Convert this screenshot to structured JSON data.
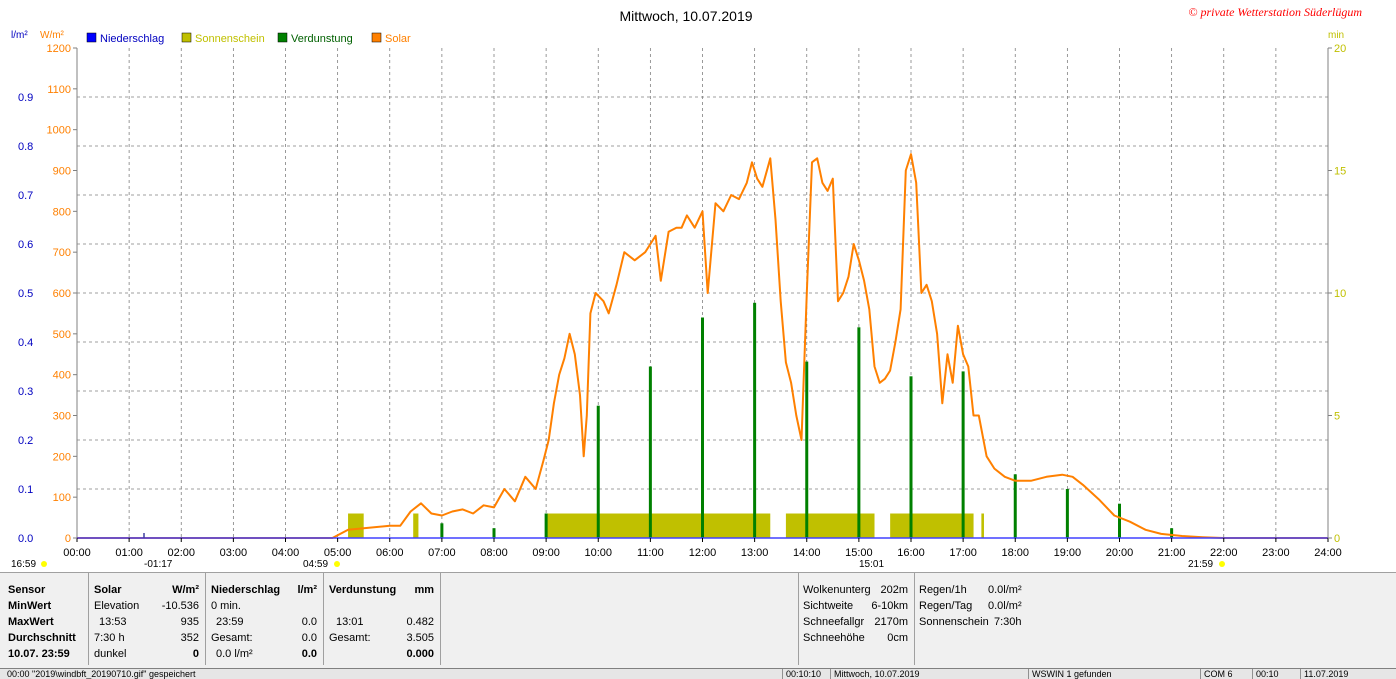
{
  "chart_data": {
    "type": "line",
    "title": "Mittwoch, 10.07.2019",
    "copyright": "© private Wetterstation Süderlügum",
    "left_units": [
      "l/m²",
      "W/m²"
    ],
    "right_unit": "min",
    "legend": [
      {
        "name": "Niederschlag",
        "color": "#0000ff"
      },
      {
        "name": "Sonnenschein",
        "color": "#c0c000"
      },
      {
        "name": "Verdunstung",
        "color": "#008000"
      },
      {
        "name": "Solar",
        "color": "#ff8000"
      }
    ],
    "x_ticks": [
      "00:00",
      "01:00",
      "02:00",
      "03:00",
      "04:00",
      "05:00",
      "06:00",
      "07:00",
      "08:00",
      "09:00",
      "10:00",
      "11:00",
      "12:00",
      "13:00",
      "14:00",
      "15:00",
      "16:00",
      "17:00",
      "18:00",
      "19:00",
      "20:00",
      "21:00",
      "22:00",
      "23:00",
      "24:00"
    ],
    "xlim": [
      0,
      24
    ],
    "y_solar_ticks": [
      "0",
      "100",
      "200",
      "300",
      "400",
      "500",
      "600",
      "700",
      "800",
      "900",
      "1000",
      "1100",
      "1200"
    ],
    "y_solar_lim": [
      0,
      1200
    ],
    "y_rain_ticks": [
      "0.0",
      "0.1",
      "0.2",
      "0.3",
      "0.4",
      "0.5",
      "0.6",
      "0.7",
      "0.8",
      "0.9"
    ],
    "y_rain_lim": [
      0,
      1.0
    ],
    "y_min_ticks": [
      "0",
      "5",
      "10",
      "15",
      "20"
    ],
    "y_min_lim": [
      0,
      20
    ],
    "grid": true,
    "sun_events": {
      "sunrise": "04:59",
      "sunset": "21:59",
      "dawn": "-01:17",
      "noon": "15:01",
      "left_label": "16:59"
    },
    "solar": [
      [
        0,
        0
      ],
      [
        4.9,
        0
      ],
      [
        5.2,
        20
      ],
      [
        5.6,
        25
      ],
      [
        6.0,
        30
      ],
      [
        6.2,
        30
      ],
      [
        6.4,
        65
      ],
      [
        6.6,
        85
      ],
      [
        6.8,
        60
      ],
      [
        7.0,
        55
      ],
      [
        7.2,
        65
      ],
      [
        7.4,
        70
      ],
      [
        7.6,
        60
      ],
      [
        7.8,
        80
      ],
      [
        8.0,
        75
      ],
      [
        8.2,
        120
      ],
      [
        8.4,
        90
      ],
      [
        8.6,
        150
      ],
      [
        8.8,
        120
      ],
      [
        8.95,
        190
      ],
      [
        9.05,
        240
      ],
      [
        9.15,
        330
      ],
      [
        9.25,
        400
      ],
      [
        9.35,
        440
      ],
      [
        9.45,
        500
      ],
      [
        9.55,
        450
      ],
      [
        9.65,
        350
      ],
      [
        9.72,
        200
      ],
      [
        9.78,
        300
      ],
      [
        9.85,
        550
      ],
      [
        9.95,
        600
      ],
      [
        10.1,
        580
      ],
      [
        10.2,
        550
      ],
      [
        10.35,
        620
      ],
      [
        10.5,
        700
      ],
      [
        10.7,
        680
      ],
      [
        10.9,
        700
      ],
      [
        11.0,
        720
      ],
      [
        11.1,
        740
      ],
      [
        11.2,
        630
      ],
      [
        11.35,
        750
      ],
      [
        11.5,
        760
      ],
      [
        11.6,
        760
      ],
      [
        11.7,
        790
      ],
      [
        11.85,
        760
      ],
      [
        12.0,
        800
      ],
      [
        12.1,
        600
      ],
      [
        12.25,
        820
      ],
      [
        12.4,
        800
      ],
      [
        12.55,
        840
      ],
      [
        12.7,
        830
      ],
      [
        12.85,
        870
      ],
      [
        12.95,
        920
      ],
      [
        13.05,
        880
      ],
      [
        13.15,
        860
      ],
      [
        13.3,
        930
      ],
      [
        13.4,
        780
      ],
      [
        13.5,
        580
      ],
      [
        13.6,
        430
      ],
      [
        13.7,
        380
      ],
      [
        13.8,
        300
      ],
      [
        13.9,
        240
      ],
      [
        14.0,
        600
      ],
      [
        14.1,
        920
      ],
      [
        14.2,
        930
      ],
      [
        14.3,
        870
      ],
      [
        14.4,
        850
      ],
      [
        14.5,
        880
      ],
      [
        14.6,
        580
      ],
      [
        14.7,
        600
      ],
      [
        14.8,
        640
      ],
      [
        14.9,
        720
      ],
      [
        15.0,
        680
      ],
      [
        15.1,
        630
      ],
      [
        15.2,
        560
      ],
      [
        15.3,
        420
      ],
      [
        15.4,
        380
      ],
      [
        15.5,
        390
      ],
      [
        15.6,
        410
      ],
      [
        15.7,
        480
      ],
      [
        15.8,
        560
      ],
      [
        15.9,
        900
      ],
      [
        16.0,
        940
      ],
      [
        16.1,
        870
      ],
      [
        16.2,
        600
      ],
      [
        16.3,
        620
      ],
      [
        16.4,
        580
      ],
      [
        16.5,
        500
      ],
      [
        16.6,
        330
      ],
      [
        16.7,
        450
      ],
      [
        16.8,
        380
      ],
      [
        16.9,
        520
      ],
      [
        17.0,
        450
      ],
      [
        17.1,
        420
      ],
      [
        17.2,
        300
      ],
      [
        17.3,
        300
      ],
      [
        17.45,
        200
      ],
      [
        17.6,
        170
      ],
      [
        17.8,
        150
      ],
      [
        18.0,
        140
      ],
      [
        18.3,
        140
      ],
      [
        18.6,
        150
      ],
      [
        18.9,
        155
      ],
      [
        19.1,
        150
      ],
      [
        19.3,
        130
      ],
      [
        19.6,
        95
      ],
      [
        19.9,
        55
      ],
      [
        20.2,
        40
      ],
      [
        20.5,
        20
      ],
      [
        20.8,
        10
      ],
      [
        21.2,
        5
      ],
      [
        21.6,
        2
      ],
      [
        21.99,
        0
      ],
      [
        24,
        0
      ]
    ],
    "verdunstung": [
      [
        7.0,
        0.03
      ],
      [
        8.0,
        0.02
      ],
      [
        9.0,
        0.05
      ],
      [
        10.0,
        0.27
      ],
      [
        11.0,
        0.35
      ],
      [
        12.0,
        0.45
      ],
      [
        13.0,
        0.48
      ],
      [
        14.0,
        0.36
      ],
      [
        15.0,
        0.43
      ],
      [
        16.0,
        0.33
      ],
      [
        17.0,
        0.34
      ],
      [
        18.0,
        0.13
      ],
      [
        19.0,
        0.1
      ],
      [
        20.0,
        0.07
      ],
      [
        21.0,
        0.02
      ]
    ],
    "sunshine": [
      [
        5.2,
        5.5,
        1.0
      ],
      [
        6.45,
        6.55,
        1.0
      ],
      [
        9.0,
        13.3,
        1.0
      ],
      [
        13.6,
        15.3,
        1.0
      ],
      [
        15.6,
        17.2,
        1.0
      ],
      [
        17.35,
        17.4,
        1.0
      ]
    ]
  },
  "table": {
    "sensor": {
      "header": "Sensor",
      "rows": [
        "MinWert",
        "MaxWert",
        "Durchschnitt",
        "10.07. 23:59"
      ]
    },
    "solar": {
      "header": "Solar",
      "unit": "W/m²",
      "rows": [
        [
          "Elevation",
          "-10.536"
        ],
        [
          "13:53",
          "935"
        ],
        [
          "7:30 h",
          "352"
        ],
        [
          "dunkel",
          "0"
        ]
      ]
    },
    "niederschlag": {
      "header": "Niederschlag",
      "unit": "l/m²",
      "rows": [
        [
          "0 min.",
          ""
        ],
        [
          "23:59",
          "0.0"
        ],
        [
          "Gesamt:",
          "0.0"
        ],
        [
          "0.0 l/m²",
          "0.0"
        ]
      ]
    },
    "verdunstung": {
      "header": "Verdunstung",
      "unit": "mm",
      "rows": [
        [
          "",
          ""
        ],
        [
          "13:01",
          "0.482"
        ],
        [
          "Gesamt:",
          "3.505"
        ],
        [
          "",
          "0.000"
        ]
      ]
    },
    "wolken": [
      [
        "Wolkenunterg",
        "202m"
      ],
      [
        "Sichtweite",
        "6-10km"
      ],
      [
        "Schneefallgr",
        "2170m"
      ],
      [
        "Schneehöhe",
        "0cm"
      ]
    ],
    "regen": [
      [
        "Regen/1h",
        "0.0l/m²"
      ],
      [
        "Regen/Tag",
        "0.0l/m²"
      ],
      [
        "Sonnenschein",
        "7:30h"
      ]
    ]
  },
  "statusbar": {
    "left": "00:00  \"2019\\windbft_20190710.gif\" gespeichert",
    "time": "00:10:10",
    "date": "Mittwoch, 10.07.2019",
    "wswin": "WSWIN 1 gefunden",
    "com": "COM 6",
    "clock": "00:10",
    "day": "11.07.2019"
  }
}
